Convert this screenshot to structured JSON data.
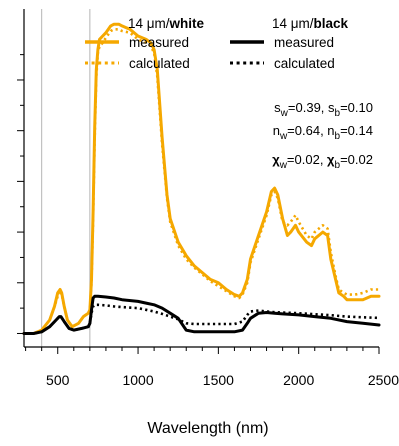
{
  "chart_data": {
    "type": "line",
    "xlabel": "Wavelength (nm)",
    "ylabel": "",
    "xlim": [
      290,
      2500
    ],
    "ylim": [
      0,
      1
    ],
    "x_ticks": [
      500,
      1000,
      1500,
      2000,
      2500
    ],
    "x_tick_labels": [
      "500",
      "1000",
      "1500",
      "2000",
      "2500"
    ],
    "y_ticks": [
      0.04,
      0.19,
      0.34,
      0.49,
      0.64,
      0.79
    ],
    "y_minor_ticks": [
      0.115,
      0.265,
      0.415,
      0.565,
      0.715,
      0.865
    ],
    "y_tick_labels_shown": false,
    "vertical_lines": [
      400,
      700
    ],
    "grid": false,
    "colors": {
      "white": "#f5a800",
      "black": "#000000",
      "reference_line": "#b5b5b5"
    },
    "legend": {
      "placement": "top",
      "groups": [
        {
          "title_plain": "14 μm/",
          "title_bold": "white",
          "entries": [
            {
              "series_index": 0,
              "label": "measured",
              "style": "solid",
              "color": "#f5a800"
            },
            {
              "series_index": 1,
              "label": "calculated",
              "style": "dotted",
              "color": "#f5a800"
            }
          ]
        },
        {
          "title_plain": "14 μm/",
          "title_bold": "black",
          "entries": [
            {
              "series_index": 2,
              "label": "measured",
              "style": "solid",
              "color": "#000000"
            },
            {
              "series_index": 3,
              "label": "calculated",
              "style": "dotted",
              "color": "#000000"
            }
          ]
        }
      ]
    },
    "annotations": [
      {
        "parts": [
          {
            "t": "s"
          },
          {
            "t": "w",
            "sub": true
          },
          {
            "t": "=0.39, "
          },
          {
            "t": "s"
          },
          {
            "t": "b",
            "sub": true
          },
          {
            "t": "=0.10"
          }
        ]
      },
      {
        "parts": [
          {
            "t": "n"
          },
          {
            "t": "w",
            "sub": true
          },
          {
            "t": "=0.64, "
          },
          {
            "t": "n"
          },
          {
            "t": "b",
            "sub": true
          },
          {
            "t": "=0.14"
          }
        ]
      },
      {
        "parts": [
          {
            "t": "χ",
            "bold": true
          },
          {
            "t": "w",
            "sub": true
          },
          {
            "t": "=0.02, "
          },
          {
            "t": "χ",
            "bold": true
          },
          {
            "t": "b",
            "sub": true
          },
          {
            "t": "=0.02"
          }
        ]
      }
    ],
    "series": [
      {
        "style": "solid",
        "color": "#f5a800",
        "x": [
          290,
          350,
          400,
          450,
          480,
          500,
          515,
          525,
          540,
          560,
          590,
          630,
          660,
          690,
          700,
          710,
          720,
          730,
          740,
          750,
          760,
          780,
          800,
          830,
          850,
          880,
          900,
          950,
          1000,
          1050,
          1080,
          1100,
          1120,
          1150,
          1180,
          1200,
          1250,
          1300,
          1350,
          1400,
          1450,
          1500,
          1550,
          1600,
          1630,
          1650,
          1680,
          1700,
          1750,
          1800,
          1830,
          1850,
          1870,
          1900,
          1930,
          1950,
          1980,
          2000,
          2050,
          2080,
          2100,
          2150,
          2180,
          2200,
          2230,
          2250,
          2280,
          2300,
          2350,
          2400,
          2450,
          2500
        ],
        "y": [
          0.04,
          0.04,
          0.05,
          0.08,
          0.12,
          0.16,
          0.17,
          0.16,
          0.12,
          0.08,
          0.06,
          0.07,
          0.09,
          0.1,
          0.11,
          0.2,
          0.4,
          0.65,
          0.82,
          0.88,
          0.91,
          0.92,
          0.93,
          0.95,
          0.955,
          0.955,
          0.95,
          0.94,
          0.92,
          0.91,
          0.9,
          0.88,
          0.82,
          0.62,
          0.45,
          0.38,
          0.31,
          0.27,
          0.24,
          0.22,
          0.2,
          0.19,
          0.17,
          0.155,
          0.15,
          0.16,
          0.2,
          0.26,
          0.33,
          0.4,
          0.46,
          0.47,
          0.45,
          0.38,
          0.33,
          0.34,
          0.36,
          0.34,
          0.31,
          0.3,
          0.32,
          0.34,
          0.33,
          0.26,
          0.2,
          0.16,
          0.15,
          0.14,
          0.14,
          0.14,
          0.15,
          0.15
        ]
      },
      {
        "style": "dotted",
        "color": "#f5a800",
        "x": [
          290,
          350,
          400,
          450,
          480,
          500,
          515,
          525,
          540,
          560,
          590,
          630,
          660,
          690,
          700,
          710,
          720,
          730,
          740,
          750,
          760,
          780,
          800,
          830,
          850,
          880,
          900,
          950,
          1000,
          1050,
          1080,
          1100,
          1120,
          1150,
          1180,
          1200,
          1250,
          1300,
          1350,
          1400,
          1450,
          1500,
          1550,
          1600,
          1630,
          1650,
          1680,
          1700,
          1750,
          1800,
          1830,
          1850,
          1870,
          1900,
          1930,
          1950,
          1980,
          2000,
          2050,
          2080,
          2100,
          2150,
          2180,
          2200,
          2230,
          2250,
          2280,
          2300,
          2350,
          2400,
          2450,
          2500
        ],
        "y": [
          0.04,
          0.04,
          0.05,
          0.08,
          0.12,
          0.15,
          0.16,
          0.155,
          0.12,
          0.08,
          0.06,
          0.07,
          0.09,
          0.1,
          0.11,
          0.19,
          0.38,
          0.62,
          0.8,
          0.87,
          0.89,
          0.9,
          0.915,
          0.935,
          0.94,
          0.94,
          0.935,
          0.93,
          0.91,
          0.9,
          0.89,
          0.87,
          0.8,
          0.6,
          0.44,
          0.37,
          0.3,
          0.26,
          0.235,
          0.215,
          0.195,
          0.18,
          0.165,
          0.15,
          0.145,
          0.155,
          0.19,
          0.25,
          0.32,
          0.39,
          0.45,
          0.46,
          0.44,
          0.37,
          0.36,
          0.37,
          0.39,
          0.37,
          0.33,
          0.32,
          0.34,
          0.36,
          0.35,
          0.28,
          0.21,
          0.17,
          0.16,
          0.155,
          0.155,
          0.16,
          0.17,
          0.17
        ]
      },
      {
        "style": "solid",
        "color": "#000000",
        "x": [
          290,
          350,
          400,
          450,
          490,
          510,
          520,
          540,
          570,
          600,
          650,
          690,
          700,
          710,
          720,
          730,
          750,
          800,
          850,
          900,
          1000,
          1050,
          1100,
          1150,
          1200,
          1250,
          1300,
          1350,
          1400,
          1500,
          1600,
          1650,
          1680,
          1700,
          1750,
          1800,
          1850,
          1900,
          2000,
          2100,
          2200,
          2300,
          2400,
          2500
        ],
        "y": [
          0.04,
          0.04,
          0.045,
          0.06,
          0.08,
          0.09,
          0.09,
          0.075,
          0.055,
          0.05,
          0.055,
          0.06,
          0.07,
          0.11,
          0.145,
          0.15,
          0.15,
          0.148,
          0.145,
          0.14,
          0.135,
          0.13,
          0.125,
          0.115,
          0.1,
          0.085,
          0.05,
          0.045,
          0.045,
          0.045,
          0.045,
          0.05,
          0.07,
          0.085,
          0.1,
          0.102,
          0.1,
          0.098,
          0.095,
          0.09,
          0.085,
          0.075,
          0.07,
          0.065
        ]
      },
      {
        "style": "dotted",
        "color": "#000000",
        "x": [
          290,
          350,
          400,
          450,
          490,
          510,
          520,
          540,
          570,
          600,
          650,
          690,
          700,
          710,
          720,
          730,
          750,
          800,
          850,
          900,
          1000,
          1050,
          1100,
          1150,
          1200,
          1250,
          1300,
          1350,
          1400,
          1500,
          1600,
          1650,
          1680,
          1700,
          1750,
          1800,
          1850,
          1900,
          2000,
          2100,
          2200,
          2300,
          2400,
          2500
        ],
        "y": [
          0.04,
          0.04,
          0.045,
          0.06,
          0.08,
          0.09,
          0.09,
          0.075,
          0.055,
          0.05,
          0.055,
          0.06,
          0.07,
          0.1,
          0.12,
          0.125,
          0.125,
          0.123,
          0.12,
          0.118,
          0.115,
          0.11,
          0.105,
          0.098,
          0.09,
          0.082,
          0.07,
          0.068,
          0.068,
          0.068,
          0.068,
          0.075,
          0.095,
          0.105,
          0.108,
          0.105,
          0.103,
          0.102,
          0.1,
          0.097,
          0.094,
          0.09,
          0.088,
          0.086
        ]
      }
    ]
  }
}
